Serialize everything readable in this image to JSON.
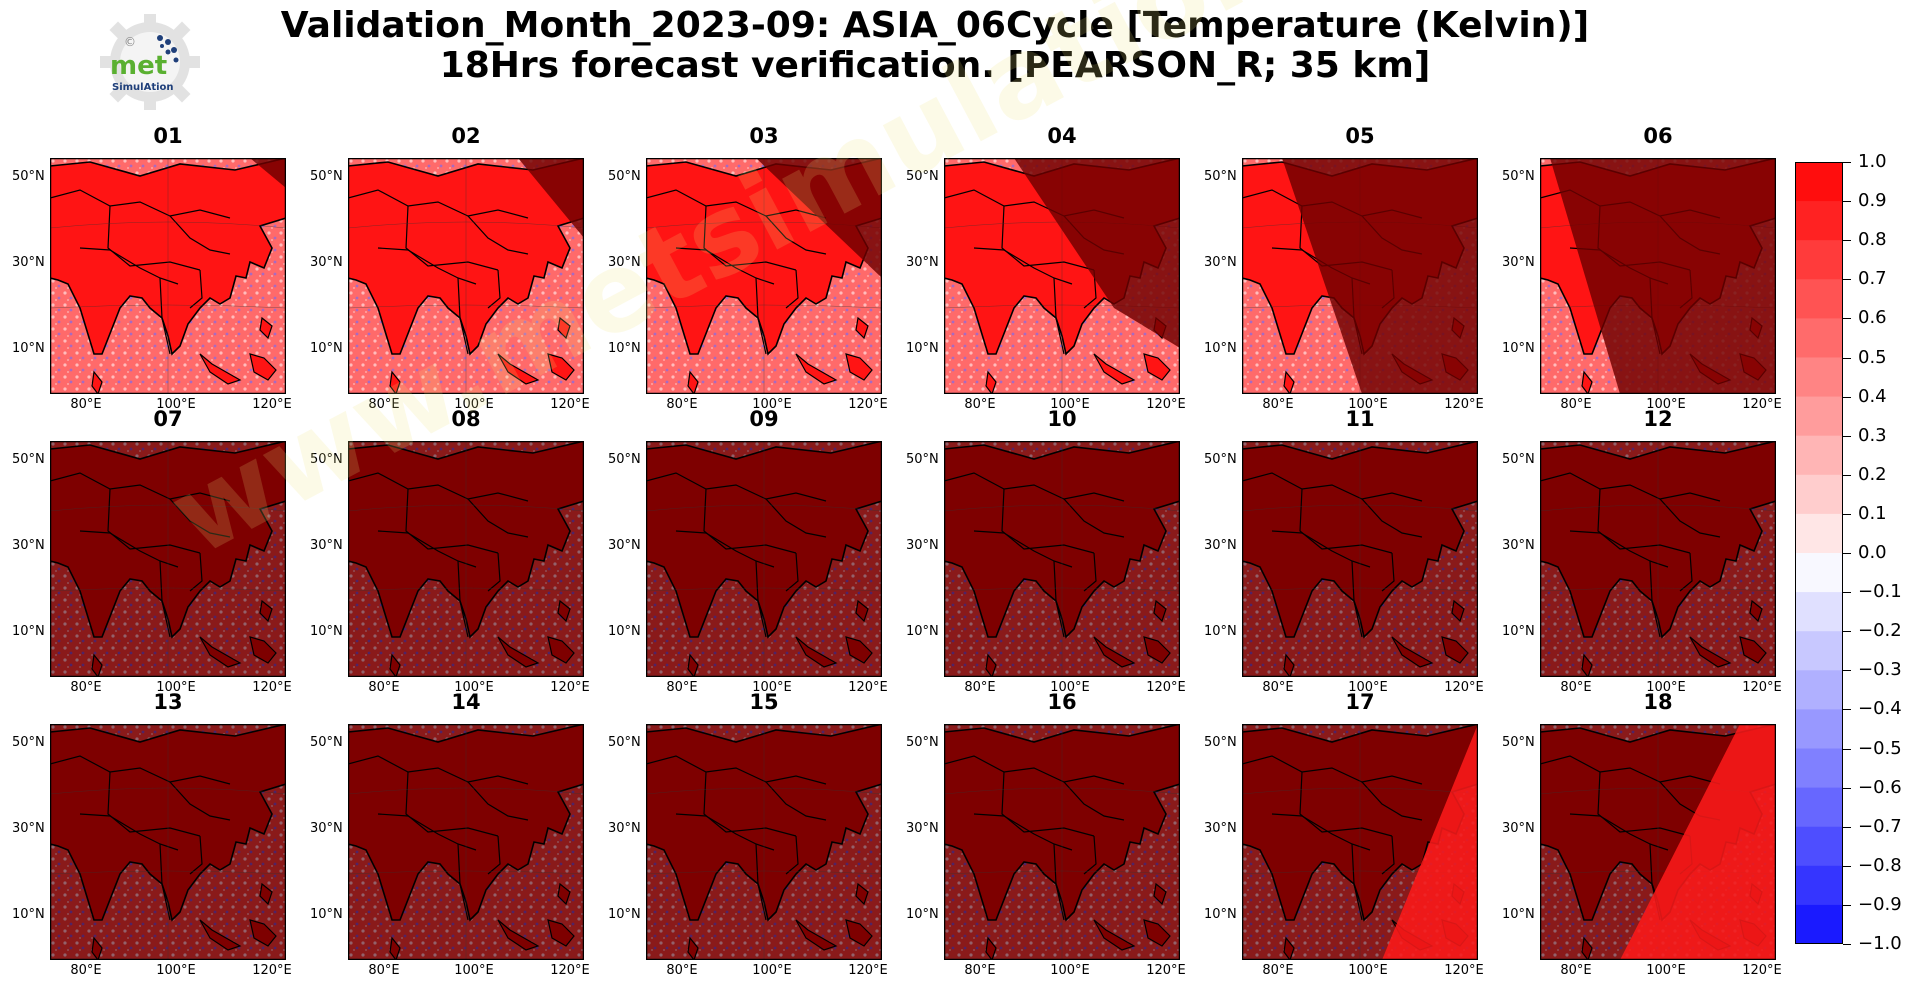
{
  "logo": {
    "text": "met",
    "subtext": "SimulAtion",
    "mark": "©"
  },
  "title": {
    "line1": "Validation_Month_2023-09: ASIA_06Cycle [Temperature (Kelvin)]",
    "line2": "18Hrs forecast verification.  [PEARSON_R; 35 km]"
  },
  "panels": [
    {
      "label": "01",
      "frac": 0.04
    },
    {
      "label": "02",
      "frac": 0.2
    },
    {
      "label": "03",
      "frac": 0.38
    },
    {
      "label": "04",
      "frac": 0.58
    },
    {
      "label": "05",
      "frac": 0.76
    },
    {
      "label": "06",
      "frac": 0.94
    },
    {
      "label": "07"
    },
    {
      "label": "08"
    },
    {
      "label": "09"
    },
    {
      "label": "10"
    },
    {
      "label": "11"
    },
    {
      "label": "12"
    },
    {
      "label": "13"
    },
    {
      "label": "14"
    },
    {
      "label": "15"
    },
    {
      "label": "16"
    },
    {
      "label": "17"
    },
    {
      "label": "18"
    }
  ],
  "axes": {
    "lat_labels": [
      "50°N",
      "30°N",
      "10°N"
    ],
    "lon_labels": [
      "80°E",
      "100°E",
      "120°E"
    ]
  },
  "colorbar": {
    "ticks": [
      "1.0",
      "0.9",
      "0.8",
      "0.7",
      "0.6",
      "0.5",
      "0.4",
      "0.3",
      "0.2",
      "0.1",
      "0.0",
      "−0.1",
      "−0.2",
      "−0.3",
      "−0.4",
      "−0.5",
      "−0.6",
      "−0.7",
      "−0.8",
      "−0.9",
      "−1.0"
    ],
    "colors": [
      "#ff0d0d",
      "#ff2222",
      "#ff3b3b",
      "#ff5353",
      "#ff6b6b",
      "#ff8484",
      "#ff9c9c",
      "#ffb5b5",
      "#ffcdcd",
      "#ffe6e6",
      "#f8f8ff",
      "#e0e0ff",
      "#c8c8ff",
      "#b0b0ff",
      "#9898ff",
      "#8080ff",
      "#6767ff",
      "#4e4eff",
      "#3535ff",
      "#1a1aff"
    ]
  },
  "watermark": "www.metsimulation.com",
  "colors": {
    "high_corr": "#ff1010",
    "night_overlay": "#7a0000",
    "border": "#000000"
  }
}
